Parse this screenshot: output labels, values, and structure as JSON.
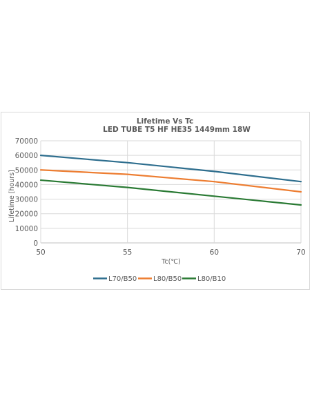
{
  "chart_data": {
    "type": "line",
    "title": "Lifetime Vs Tc",
    "subtitle": "LED TUBE T5 HF HE35 1449mm 18W",
    "xlabel": "Tc(℃)",
    "ylabel": "Lifetime [hours]",
    "x": [
      50,
      55,
      60,
      70
    ],
    "x_ticks": [
      50,
      55,
      60,
      70
    ],
    "x_tick_positions": [
      0,
      1,
      2,
      3
    ],
    "ylim": [
      0,
      70000
    ],
    "y_ticks": [
      0,
      10000,
      20000,
      30000,
      40000,
      50000,
      60000,
      70000
    ],
    "grid": true,
    "legend_position": "bottom",
    "series": [
      {
        "name": "L70/B50",
        "color": "#2e6e8e",
        "values": [
          60000,
          55000,
          49000,
          42000
        ]
      },
      {
        "name": "L80/B50",
        "color": "#ed7d31",
        "values": [
          50000,
          47000,
          42000,
          35000
        ]
      },
      {
        "name": "L80/B10",
        "color": "#2a7a34",
        "values": [
          43000,
          38000,
          32000,
          26000
        ]
      }
    ]
  }
}
